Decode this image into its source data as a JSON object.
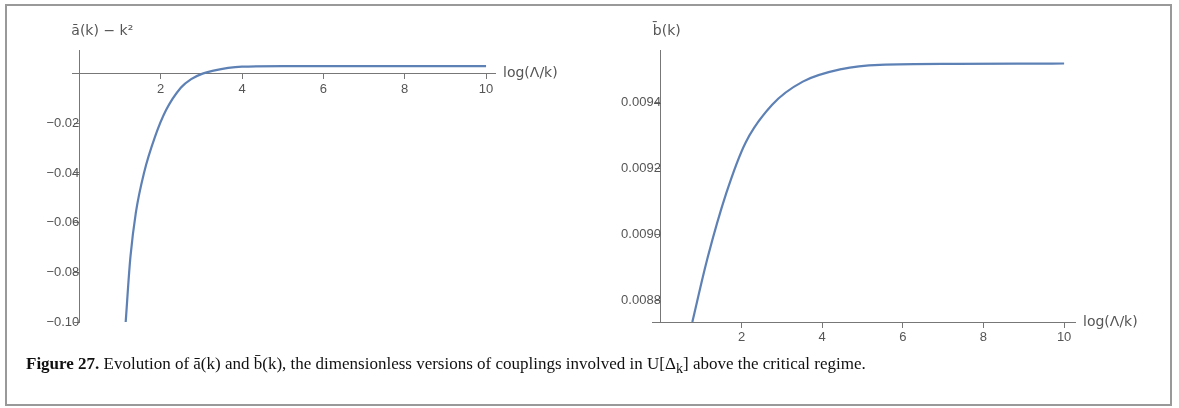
{
  "chart_data": [
    {
      "type": "line",
      "ylabel": "ā(k) − k²",
      "xlabel": "log(Λ/k)",
      "marker": "none",
      "x": [
        1.14,
        1.25,
        1.39,
        1.59,
        1.86,
        2.13,
        2.5,
        2.75,
        3.03,
        3.3,
        3.66,
        4.0,
        5,
        6,
        8,
        10
      ],
      "series": [
        {
          "color": "#5e81b5",
          "values": [
            -0.1,
            -0.075,
            -0.056,
            -0.04,
            -0.0255,
            -0.0148,
            -0.0056,
            -0.0022,
            0,
            0.0012,
            0.0023,
            0.0028,
            0.003,
            0.003,
            0.003,
            0.003
          ]
        }
      ],
      "xlim": [
        -0.18,
        10.22
      ],
      "ylim": [
        -0.1,
        0.0095
      ],
      "xticks": [
        2,
        4,
        6,
        8,
        10
      ],
      "yticks": [
        {
          "value": -0.1,
          "label": "−0.10"
        },
        {
          "value": -0.08,
          "label": "−0.08"
        },
        {
          "value": -0.06,
          "label": "−0.06"
        },
        {
          "value": -0.04,
          "label": "−0.04"
        },
        {
          "value": -0.02,
          "label": "−0.02"
        }
      ],
      "annotations": [
        "Figure 27. Evolution of ā(k) and b̄(k), the dimensionless versions of couplings involved in U[Δ$_{k}$] above the critical regime."
      ]
    },
    {
      "type": "line",
      "ylabel": "b̄(k)",
      "xlabel": "log(Λ/k)",
      "marker": "none",
      "x": [
        0.78,
        1.14,
        1.62,
        2.1,
        2.76,
        3.52,
        4.48,
        5.43,
        7.33,
        10
      ],
      "series": [
        {
          "color": "#5e81b5",
          "values": [
            0.008735,
            0.008921,
            0.009125,
            0.009279,
            0.009394,
            0.009464,
            0.009502,
            0.009515,
            0.009518,
            0.009519
          ]
        }
      ],
      "xlim": [
        -0.22,
        10.27
      ],
      "ylim": [
        0.008735,
        0.00956
      ],
      "xticks": [
        2,
        4,
        6,
        8,
        10
      ],
      "yticks": [
        0.0088,
        {
          "value": 0.009,
          "label": "0.0090"
        },
        0.0092,
        0.0094
      ]
    }
  ]
}
